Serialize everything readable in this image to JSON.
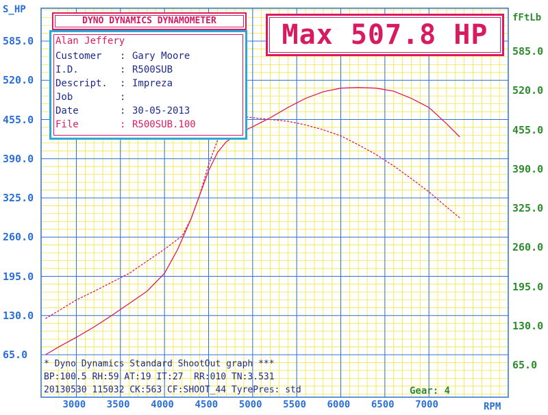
{
  "header": {
    "title": "DYNO DYNAMICS DYNAMOMETER",
    "max_label": "Max 507.8 HP"
  },
  "info": {
    "name": "Alan Jeffery",
    "rows": [
      {
        "label": "Customer",
        "value": "Gary Moore"
      },
      {
        "label": "I.D.",
        "value": "R500SUB"
      },
      {
        "label": "Descript.",
        "value": "Impreza"
      },
      {
        "label": "Job",
        "value": ""
      },
      {
        "label": "Date",
        "value": "30-05-2013"
      },
      {
        "label": "File",
        "value": "R500SUB.100"
      }
    ]
  },
  "footer": {
    "line1": "* Dyno Dynamics Standard ShootOut graph ***",
    "line2": "BP:100.5 RH:59 AT:19 IT:27  RR:010 TN:3.531",
    "line3": "20130530 115032 CK:563 CF:SHOOT_44 TyrePres: std",
    "gear": "Gear: 4"
  },
  "colors": {
    "grid": "#f2e640",
    "axis": "#2b6fd6",
    "curve": "#d81b60",
    "left_ticks": "#2b6fd6",
    "right_ticks": "#2e8b2e"
  },
  "chart_data": {
    "type": "line",
    "xlabel": "RPM",
    "ylabel_left": "S_HP",
    "ylabel_right": "fFtLb",
    "xlim": [
      2600,
      7900
    ],
    "ylim": [
      65,
      650
    ],
    "x_ticks": [
      3000,
      3500,
      4000,
      4500,
      5000,
      5500,
      6000,
      6500,
      7000
    ],
    "y_ticks_left": [
      "65.0",
      "130.0",
      "195.0",
      "260.0",
      "325.0",
      "390.0",
      "455.0",
      "520.0",
      "585.0"
    ],
    "y_ticks_right": [
      "65.0",
      "130.0",
      "195.0",
      "260.0",
      "325.0",
      "390.0",
      "455.0",
      "520.0",
      "585.0"
    ],
    "y_tick_values": [
      65,
      130,
      195,
      260,
      325,
      390,
      455,
      520,
      585
    ],
    "series": [
      {
        "style": "solid",
        "x": [
          2650,
          2800,
          3000,
          3200,
          3400,
          3600,
          3800,
          4000,
          4150,
          4300,
          4400,
          4500,
          4600,
          4700,
          4800,
          4900,
          5000,
          5200,
          5400,
          5600,
          5800,
          6000,
          6200,
          6400,
          6600,
          6800,
          7000,
          7200,
          7350
        ],
        "y": [
          65,
          78,
          94,
          111,
          130,
          150,
          170,
          200,
          240,
          290,
          330,
          370,
          400,
          418,
          428,
          436,
          443,
          458,
          475,
          490,
          501,
          507,
          508,
          507,
          502,
          490,
          475,
          448,
          426
        ]
      },
      {
        "style": "dashed",
        "x": [
          2650,
          2800,
          3000,
          3200,
          3400,
          3600,
          3800,
          4000,
          4200,
          4300,
          4400,
          4500,
          4600,
          4700,
          4800,
          5000,
          5200,
          5400,
          5600,
          5800,
          6000,
          6200,
          6400,
          6600,
          6800,
          7000,
          7200,
          7350
        ],
        "y": [
          125,
          138,
          156,
          170,
          185,
          200,
          220,
          240,
          262,
          290,
          330,
          380,
          420,
          450,
          462,
          458,
          455,
          452,
          446,
          438,
          428,
          413,
          397,
          378,
          357,
          335,
          310,
          292
        ]
      }
    ]
  }
}
